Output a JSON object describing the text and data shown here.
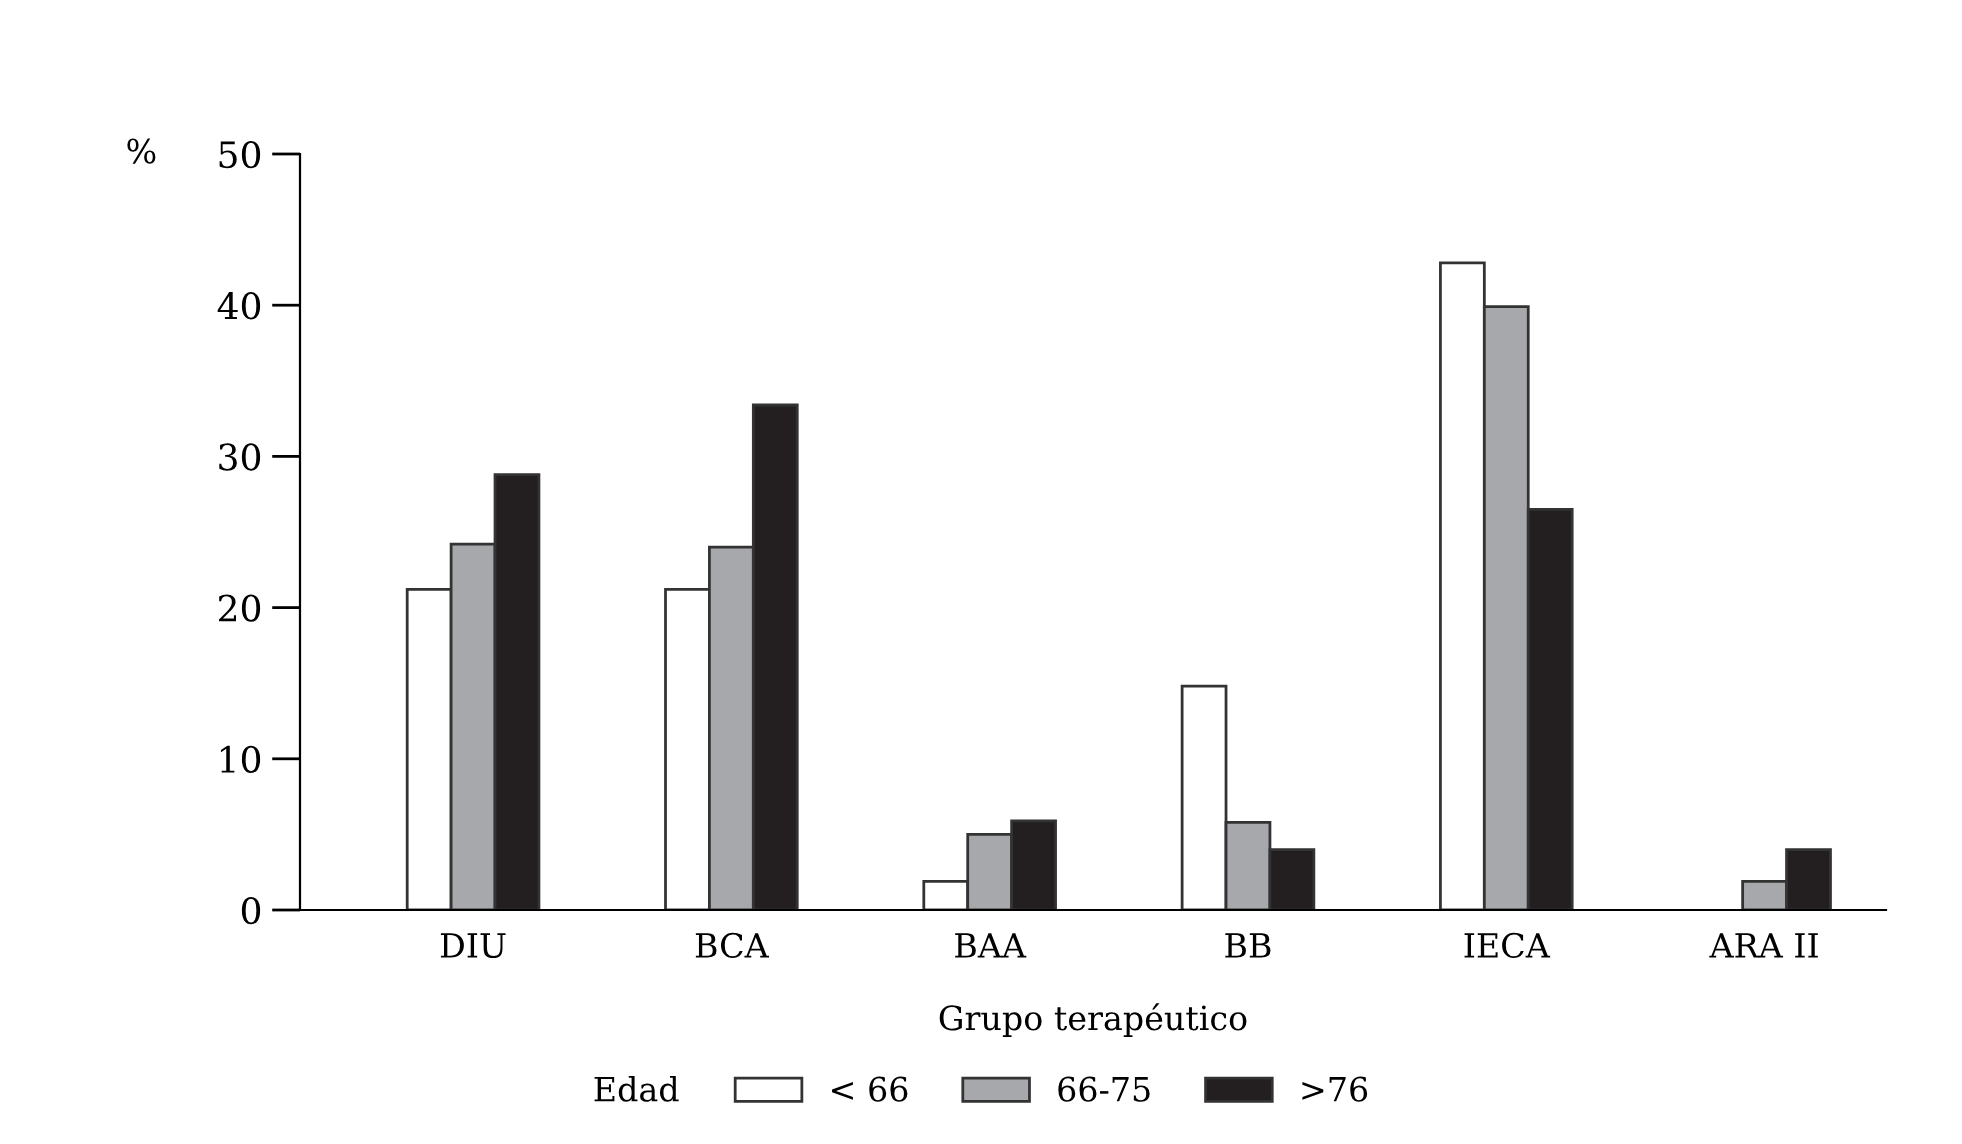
{
  "chart_data": {
    "type": "bar",
    "ylabel": "%",
    "xlabel": "Grupo terapéutico",
    "legend_title": "Edad",
    "categories": [
      "DIU",
      "BCA",
      "BAA",
      "BB",
      "IECA",
      "ARA II"
    ],
    "series": [
      {
        "name": "< 66",
        "color": "#ffffff",
        "values": [
          21.2,
          21.2,
          1.9,
          14.8,
          42.8,
          null
        ]
      },
      {
        "name": "66-75",
        "color": "#a7a8ab",
        "values": [
          24.2,
          24.0,
          5.0,
          5.8,
          39.9,
          1.9
        ]
      },
      {
        "name": ">76",
        "color": "#231f20",
        "values": [
          28.8,
          33.4,
          5.9,
          4.0,
          26.5,
          4.0
        ]
      }
    ],
    "ylim": [
      0,
      50
    ],
    "yticks": [
      0,
      10,
      20,
      30,
      40,
      50
    ],
    "grid": false,
    "legend": "bottom"
  }
}
